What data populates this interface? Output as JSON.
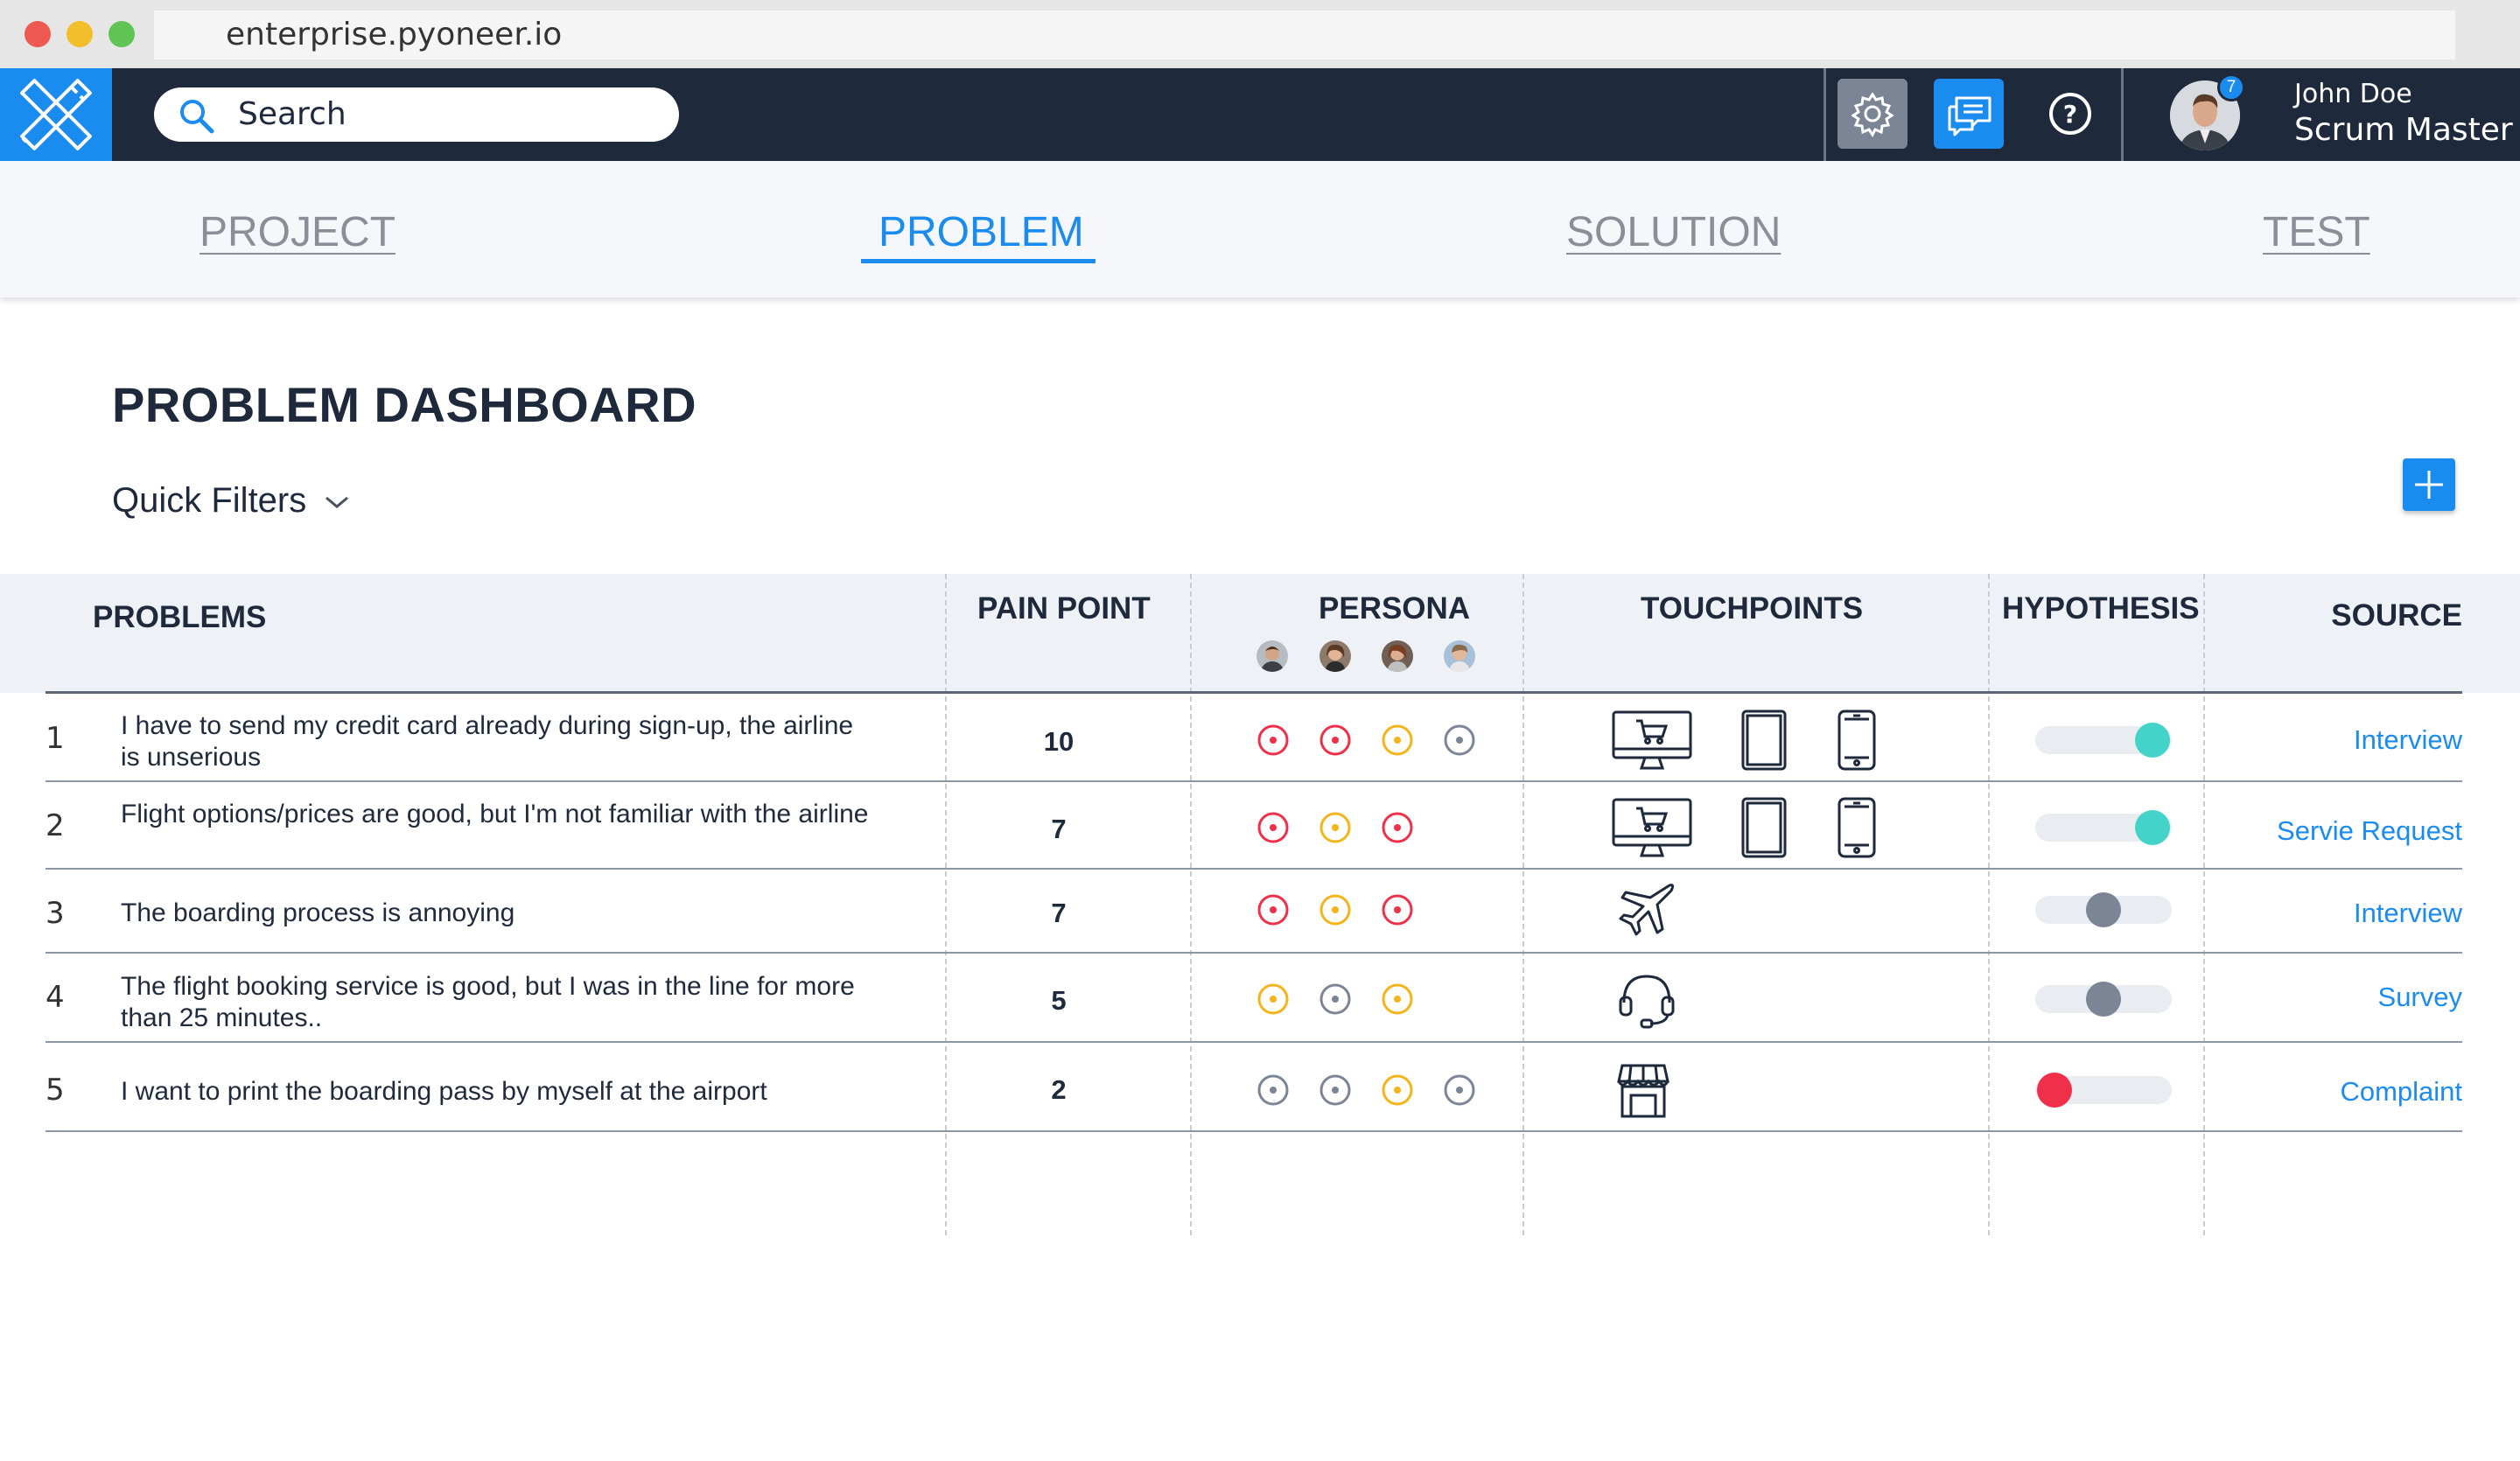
{
  "browser": {
    "url": "enterprise.pyoneer.io"
  },
  "header": {
    "search_placeholder": "Search",
    "user": {
      "name": "John Doe",
      "role": "Scrum Master",
      "notifications": "7"
    },
    "icons": [
      "settings-icon",
      "chat-icon",
      "help-icon"
    ]
  },
  "tabs": [
    {
      "label": "PROJECT",
      "active": false
    },
    {
      "label": "PROBLEM",
      "active": true
    },
    {
      "label": "SOLUTION",
      "active": false
    },
    {
      "label": "TEST",
      "active": false
    }
  ],
  "page": {
    "title": "PROBLEM DASHBOARD",
    "quick_filters": "Quick Filters"
  },
  "table": {
    "headers": {
      "problems": "PROBLEMS",
      "pain_point": "PAIN POINT",
      "persona": "PERSONA",
      "touchpoints": "TOUCHPOINTS",
      "hypothesis": "HYPOTHESIS",
      "source": "SOURCE"
    },
    "rows": [
      {
        "num": "1",
        "problem": "I have to send my credit card already during sign-up, the airline is unserious",
        "pain": "10",
        "persona": [
          "red",
          "red",
          "yellow",
          "gray"
        ],
        "touchpoints": [
          "desktop-cart-icon",
          "tablet-icon",
          "phone-icon"
        ],
        "hypothesis": {
          "state": "validated",
          "level": 1.0,
          "color": "#43d3c8"
        },
        "source": "Interview"
      },
      {
        "num": "2",
        "problem": "Flight options/prices are good, but I'm not familiar with the airline",
        "pain": "7",
        "persona": [
          "red",
          "yellow",
          "red"
        ],
        "touchpoints": [
          "desktop-cart-icon",
          "tablet-icon",
          "phone-icon"
        ],
        "hypothesis": {
          "state": "validated",
          "level": 1.0,
          "color": "#43d3c8"
        },
        "source": "Servie Request"
      },
      {
        "num": "3",
        "problem": "The boarding process is annoying",
        "pain": "7",
        "persona": [
          "red",
          "yellow",
          "red"
        ],
        "touchpoints": [
          "airplane-icon"
        ],
        "hypothesis": {
          "state": "neutral",
          "level": 0.5,
          "color": "#7b8596"
        },
        "source": "Interview"
      },
      {
        "num": "4",
        "problem": "The flight booking service is good, but I was in the line for more than 25 minutes..",
        "pain": "5",
        "persona": [
          "yellow",
          "gray",
          "yellow"
        ],
        "touchpoints": [
          "headset-icon"
        ],
        "hypothesis": {
          "state": "neutral",
          "level": 0.5,
          "color": "#7b8596"
        },
        "source": "Survey"
      },
      {
        "num": "5",
        "problem": "I want to print the boarding pass by myself at the airport",
        "pain": "2",
        "persona": [
          "gray",
          "gray",
          "yellow",
          "gray"
        ],
        "touchpoints": [
          "store-icon"
        ],
        "hypothesis": {
          "state": "invalidated",
          "level": 0.0,
          "color": "#f0304a"
        },
        "source": "Complaint"
      }
    ]
  },
  "colors": {
    "accent": "#1a8cf0",
    "navy": "#1e2a3c",
    "persona_red": "#f0304a",
    "persona_yellow": "#f4b41a",
    "persona_gray": "#7b8596"
  }
}
